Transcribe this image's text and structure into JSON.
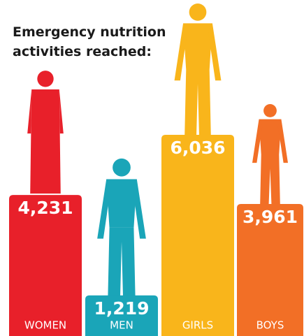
{
  "chart_data": {
    "type": "bar",
    "title": "Emergency nutrition activities reached:",
    "categories": [
      "WOMEN",
      "MEN",
      "GIRLS",
      "BOYS"
    ],
    "values": [
      4231,
      1219,
      6036,
      3961
    ],
    "value_labels": [
      "4,231",
      "1,219",
      "6,036",
      "3,961"
    ],
    "colors": [
      "#e8202a",
      "#1aa5b8",
      "#f9b51b",
      "#f26f26"
    ]
  }
}
